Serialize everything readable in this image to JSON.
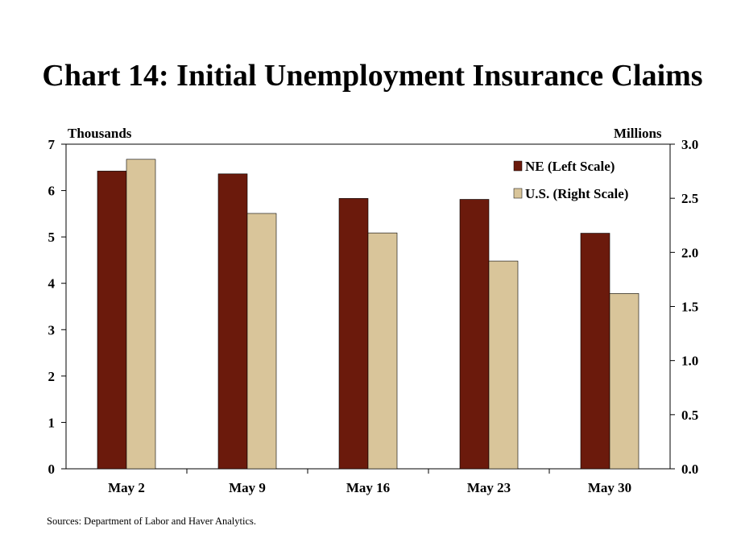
{
  "chart_data": {
    "type": "bar",
    "title": "Chart 14: Initial Unemployment Insurance Claims",
    "left_axis_label": "Thousands",
    "right_axis_label": "Millions",
    "categories": [
      "May 2",
      "May 9",
      "May 16",
      "May 23",
      "May 30"
    ],
    "series": [
      {
        "name": "NE (Left Scale)",
        "axis": "left",
        "color": "#6b1a0c",
        "values": [
          6.42,
          6.36,
          5.83,
          5.81,
          5.08
        ]
      },
      {
        "name": "U.S. (Right Scale)",
        "axis": "right",
        "color": "#d9c59a",
        "values": [
          2.86,
          2.36,
          2.18,
          1.92,
          1.62
        ]
      }
    ],
    "left_ylim": [
      0,
      7
    ],
    "left_ticks": [
      "0",
      "1",
      "2",
      "3",
      "4",
      "5",
      "6",
      "7"
    ],
    "right_ylim": [
      0,
      3.0
    ],
    "right_ticks": [
      "0.0",
      "0.5",
      "1.0",
      "1.5",
      "2.0",
      "2.5",
      "3.0"
    ],
    "grid": false,
    "legend_position": "top-right"
  },
  "source_note": "Sources: Department of Labor and Haver Analytics."
}
